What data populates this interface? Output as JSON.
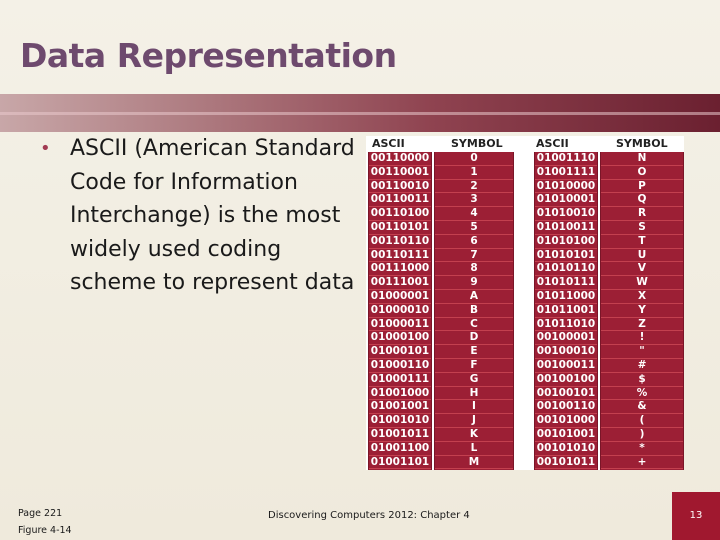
{
  "slide": {
    "title": "Data Representation",
    "bullet": "ASCII (American Standard Code for Information Interchange) is the most widely used coding scheme to represent data"
  },
  "table": {
    "headers": [
      "ASCII",
      "SYMBOL",
      "ASCII",
      "SYMBOL"
    ],
    "left_rows": [
      [
        "00110000",
        "0"
      ],
      [
        "00110001",
        "1"
      ],
      [
        "00110010",
        "2"
      ],
      [
        "00110011",
        "3"
      ],
      [
        "00110100",
        "4"
      ],
      [
        "00110101",
        "5"
      ],
      [
        "00110110",
        "6"
      ],
      [
        "00110111",
        "7"
      ],
      [
        "00111000",
        "8"
      ],
      [
        "00111001",
        "9"
      ],
      [
        "01000001",
        "A"
      ],
      [
        "01000010",
        "B"
      ],
      [
        "01000011",
        "C"
      ],
      [
        "01000100",
        "D"
      ],
      [
        "01000101",
        "E"
      ],
      [
        "01000110",
        "F"
      ],
      [
        "01000111",
        "G"
      ],
      [
        "01001000",
        "H"
      ],
      [
        "01001001",
        "I"
      ],
      [
        "01001010",
        "J"
      ],
      [
        "01001011",
        "K"
      ],
      [
        "01001100",
        "L"
      ],
      [
        "01001101",
        "M"
      ]
    ],
    "right_rows": [
      [
        "01001110",
        "N"
      ],
      [
        "01001111",
        "O"
      ],
      [
        "01010000",
        "P"
      ],
      [
        "01010001",
        "Q"
      ],
      [
        "01010010",
        "R"
      ],
      [
        "01010011",
        "S"
      ],
      [
        "01010100",
        "T"
      ],
      [
        "01010101",
        "U"
      ],
      [
        "01010110",
        "V"
      ],
      [
        "01010111",
        "W"
      ],
      [
        "01011000",
        "X"
      ],
      [
        "01011001",
        "Y"
      ],
      [
        "01011010",
        "Z"
      ],
      [
        "00100001",
        "!"
      ],
      [
        "00100010",
        "\""
      ],
      [
        "00100011",
        "#"
      ],
      [
        "00100100",
        "$"
      ],
      [
        "00100101",
        "%"
      ],
      [
        "00100110",
        "&"
      ],
      [
        "00101000",
        "("
      ],
      [
        "00101001",
        ")"
      ],
      [
        "00101010",
        "*"
      ],
      [
        "00101011",
        "+"
      ]
    ]
  },
  "footer": {
    "page_ref": "Page 221",
    "figure_ref": "Figure 4-14",
    "course": "Discovering Computers 2012: Chapter 4",
    "slide_number": "13"
  },
  "colors": {
    "title": "#6e4a6e",
    "accent": "#a0182f",
    "table_fill": "#9c1f35"
  }
}
